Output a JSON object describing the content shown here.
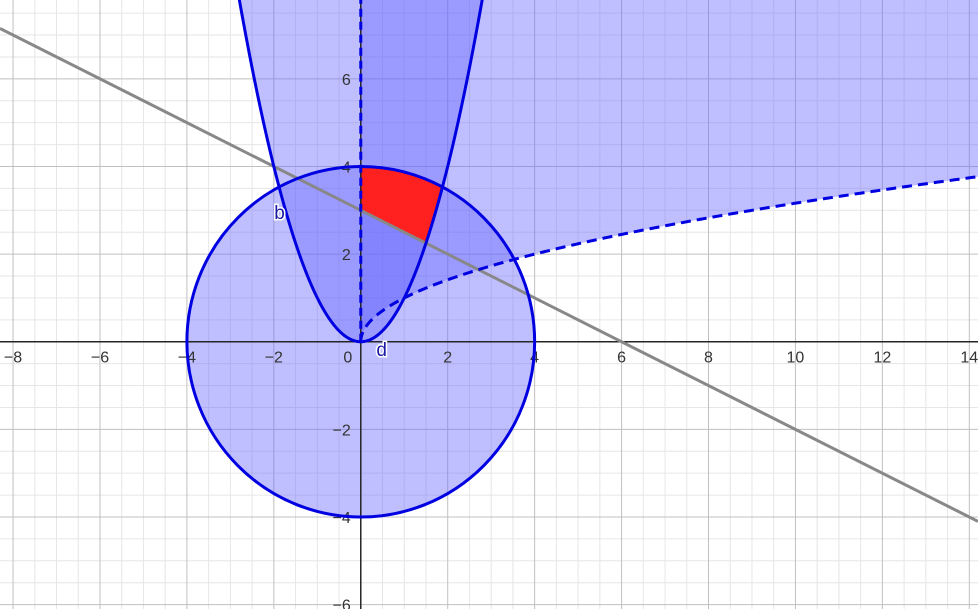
{
  "view": {
    "x_range": [
      -8.3,
      14.2
    ],
    "y_range": [
      -6.1,
      7.8
    ],
    "grid": true,
    "major_step": 2,
    "minor_step": 0.5
  },
  "axes": {
    "x_ticks": [
      {
        "value": -8,
        "label": "−8"
      },
      {
        "value": -6,
        "label": "−6"
      },
      {
        "value": -4,
        "label": "−4"
      },
      {
        "value": -2,
        "label": "−2"
      },
      {
        "value": 0,
        "label": "0"
      },
      {
        "value": 2,
        "label": "2"
      },
      {
        "value": 4,
        "label": "4"
      },
      {
        "value": 6,
        "label": "6"
      },
      {
        "value": 8,
        "label": "8"
      },
      {
        "value": 10,
        "label": "10"
      },
      {
        "value": 12,
        "label": "12"
      },
      {
        "value": 14,
        "label": "14"
      }
    ],
    "y_ticks": [
      {
        "value": -6,
        "label": "−6"
      },
      {
        "value": -4,
        "label": "−4"
      },
      {
        "value": -2,
        "label": "−2"
      },
      {
        "value": 2,
        "label": "2"
      },
      {
        "value": 4,
        "label": "4"
      },
      {
        "value": 6,
        "label": "6"
      }
    ]
  },
  "objects": {
    "circle": {
      "center": [
        0,
        0
      ],
      "radius": 4,
      "color": "#0000e0"
    },
    "parabola_b": {
      "label": "b",
      "equation": "y = x^2",
      "color": "#0000e0"
    },
    "sqrt_curve_d": {
      "label": "d",
      "equation": "y = sqrt(x)",
      "style": "dashed",
      "color": "#0000e0"
    },
    "y_axis_boundary": {
      "x": 0,
      "style": "dashed",
      "color": "#0000e0"
    },
    "line": {
      "equation": "y = 3 - x/2",
      "color": "#888888"
    },
    "highlight_region": {
      "color": "#ff2020"
    }
  },
  "colors": {
    "region_fill": "#6666ff",
    "grid_major": "#c0c0c0",
    "grid_minor": "#e6e6e6",
    "axis": "#252525"
  }
}
